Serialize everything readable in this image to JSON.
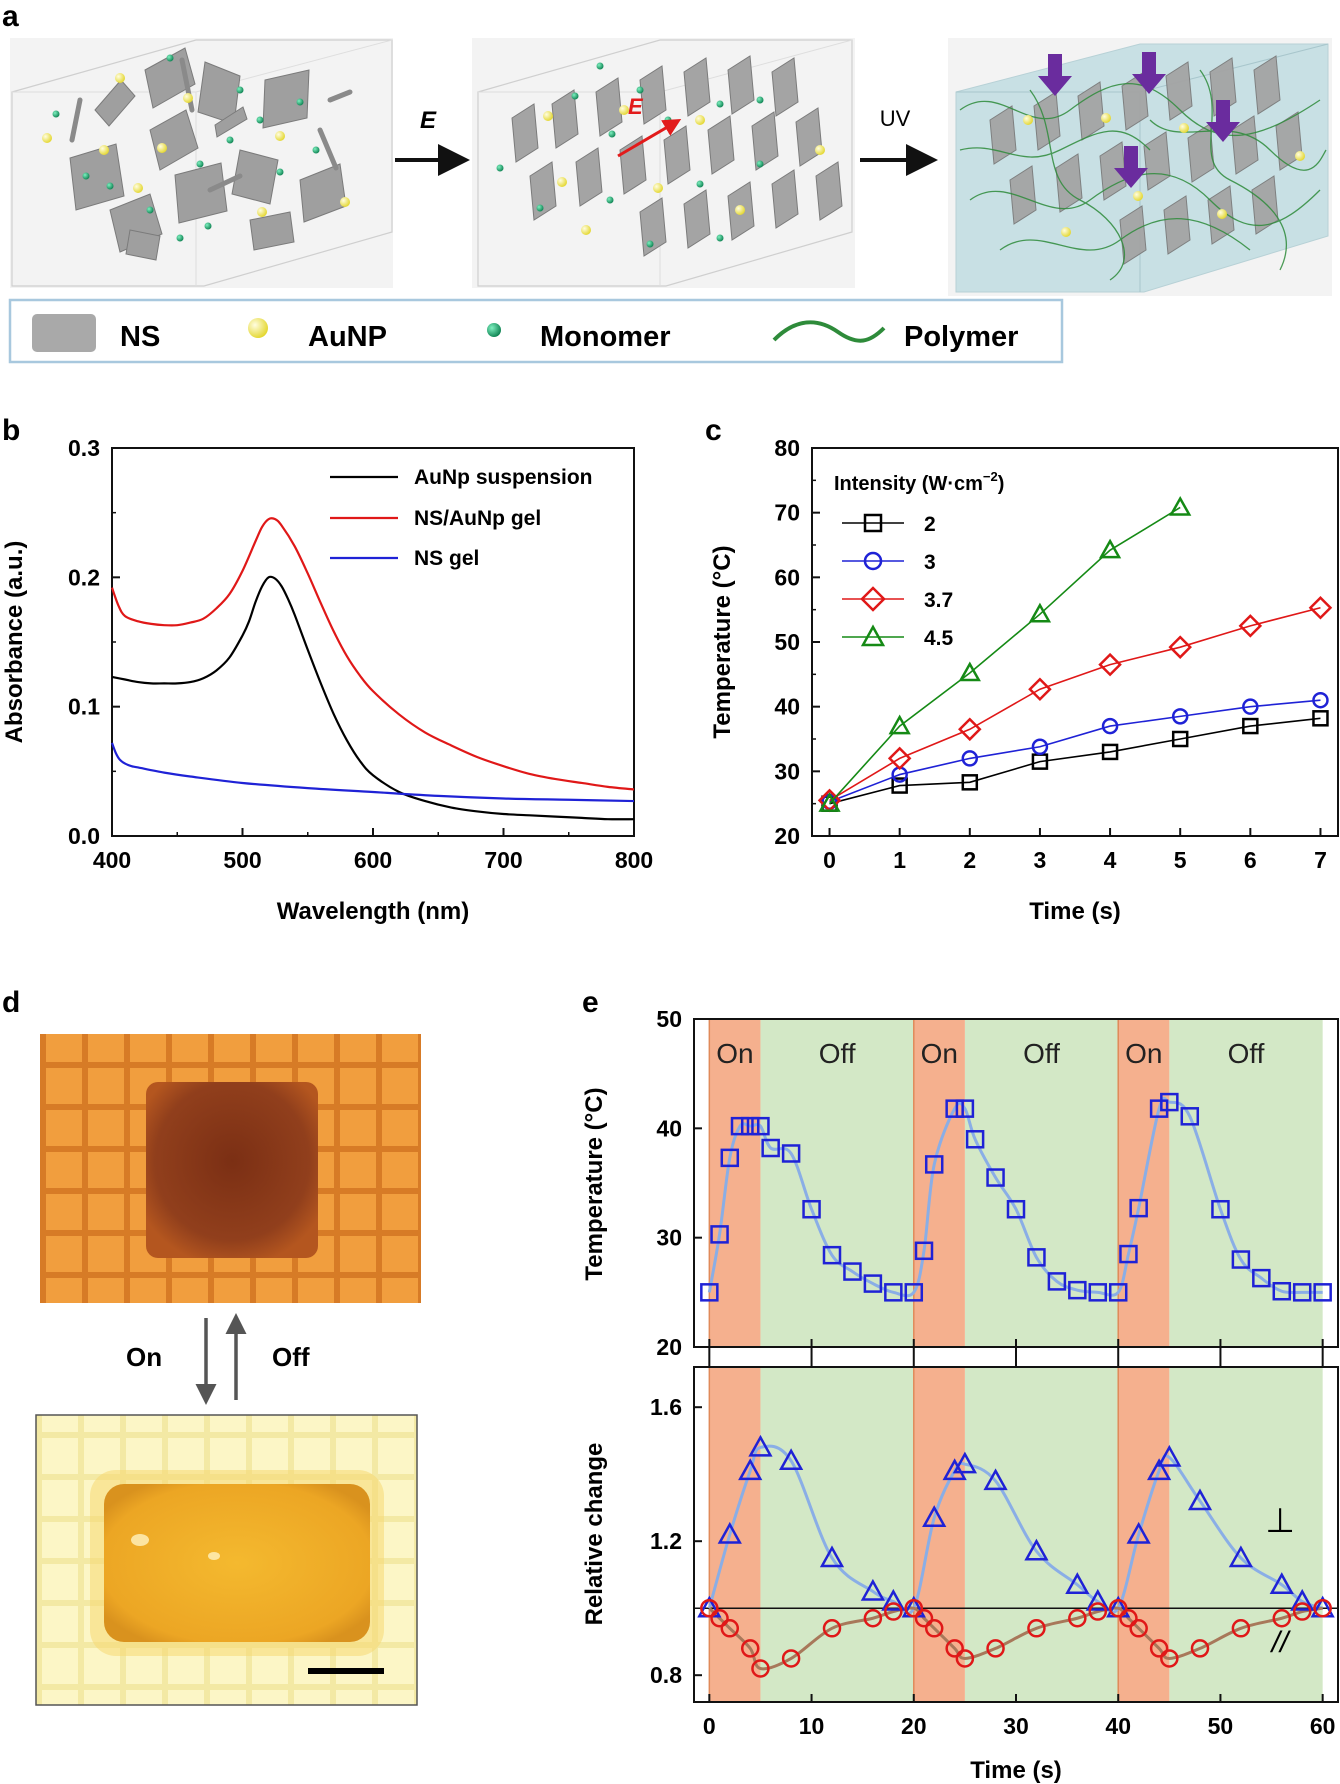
{
  "figure": {
    "panel_labels": {
      "a": "a",
      "b": "b",
      "c": "c",
      "d": "d",
      "e": "e"
    }
  },
  "panel_a": {
    "arrow1_label": "E",
    "inner_field_label": "E",
    "arrow2_label": "UV",
    "legend": {
      "ns": "NS",
      "aunp": "AuNP",
      "monomer": "Monomer",
      "polymer": "Polymer"
    },
    "colors": {
      "sheet": "#a9a9a9",
      "aunp": "#f6f07a",
      "monomer": "#1aa36a",
      "polymer": "#2e8b3a",
      "gel": "#c5dfe3",
      "pressure_arrow": "#6a2c9e",
      "field_arrow": "#e21b1b"
    }
  },
  "panel_d": {
    "on_label": "On",
    "off_label": "Off",
    "colors": {
      "top_bg": "#ec9c3c",
      "top_gel": "#7c3216",
      "bottom_bg": "#fbf2b6",
      "bottom_gel": "#efae28"
    }
  },
  "chart_data": [
    {
      "id": "b",
      "type": "line",
      "xlabel": "Wavelength (nm)",
      "ylabel": "Absorbance (a.u.)",
      "xlim": [
        400,
        800
      ],
      "ylim": [
        0,
        0.3
      ],
      "xticks": [
        "400",
        "500",
        "600",
        "700",
        "800"
      ],
      "yticks": [
        "0.0",
        "0.1",
        "0.2",
        "0.3"
      ],
      "legend_position": "top-right",
      "series": [
        {
          "name": "AuNp suspension",
          "color": "#000000",
          "x": [
            400,
            410,
            420,
            430,
            440,
            450,
            460,
            470,
            480,
            490,
            500,
            505,
            510,
            515,
            520,
            525,
            530,
            535,
            540,
            550,
            560,
            570,
            580,
            590,
            600,
            620,
            640,
            660,
            680,
            700,
            720,
            740,
            760,
            780,
            800
          ],
          "y": [
            0.123,
            0.121,
            0.119,
            0.118,
            0.118,
            0.118,
            0.119,
            0.122,
            0.128,
            0.138,
            0.155,
            0.166,
            0.181,
            0.193,
            0.2,
            0.199,
            0.193,
            0.183,
            0.171,
            0.144,
            0.118,
            0.094,
            0.074,
            0.058,
            0.047,
            0.034,
            0.027,
            0.022,
            0.019,
            0.017,
            0.016,
            0.015,
            0.014,
            0.013,
            0.013
          ]
        },
        {
          "name": "NS/AuNp gel",
          "color": "#e01818",
          "x": [
            400,
            405,
            410,
            420,
            430,
            440,
            450,
            460,
            470,
            480,
            490,
            500,
            510,
            515,
            520,
            525,
            530,
            540,
            550,
            560,
            570,
            580,
            590,
            600,
            620,
            640,
            660,
            680,
            700,
            720,
            740,
            760,
            780,
            800
          ],
          "y": [
            0.192,
            0.178,
            0.17,
            0.166,
            0.164,
            0.163,
            0.163,
            0.165,
            0.168,
            0.176,
            0.187,
            0.205,
            0.228,
            0.239,
            0.245,
            0.245,
            0.24,
            0.224,
            0.203,
            0.18,
            0.158,
            0.139,
            0.124,
            0.112,
            0.094,
            0.08,
            0.07,
            0.061,
            0.054,
            0.048,
            0.044,
            0.041,
            0.038,
            0.036
          ]
        },
        {
          "name": "NS gel",
          "color": "#1f22d6",
          "x": [
            400,
            403,
            406,
            410,
            415,
            420,
            440,
            460,
            500,
            550,
            600,
            650,
            700,
            750,
            800
          ],
          "y": [
            0.072,
            0.064,
            0.059,
            0.056,
            0.054,
            0.053,
            0.049,
            0.046,
            0.041,
            0.037,
            0.034,
            0.031,
            0.029,
            0.028,
            0.027
          ]
        }
      ]
    },
    {
      "id": "c",
      "type": "line",
      "xlabel": "Time (s)",
      "ylabel": "Temperature (°C)",
      "xlim": [
        -0.25,
        7.25
      ],
      "ylim": [
        20,
        80
      ],
      "xticks": [
        "0",
        "1",
        "2",
        "3",
        "4",
        "5",
        "6",
        "7"
      ],
      "yticks": [
        "20",
        "30",
        "40",
        "50",
        "60",
        "70",
        "80"
      ],
      "legend_title": "Intensity (W·cm",
      "legend_title_sup": "−2",
      "legend_title_end": ")",
      "legend_position": "top-left",
      "series": [
        {
          "name": "2",
          "color": "#000000",
          "marker": "square",
          "x": [
            0,
            1,
            2,
            3,
            4,
            5,
            6,
            7
          ],
          "y": [
            25,
            27.8,
            28.3,
            31.5,
            33,
            35,
            37,
            38.2
          ]
        },
        {
          "name": "3",
          "color": "#1f22d6",
          "marker": "circle",
          "x": [
            0,
            1,
            2,
            3,
            4,
            5,
            6,
            7
          ],
          "y": [
            25.3,
            29.5,
            32,
            33.8,
            37,
            38.5,
            40,
            41
          ]
        },
        {
          "name": "3.7",
          "color": "#e01818",
          "marker": "diamond",
          "x": [
            0,
            1,
            2,
            3,
            4,
            5,
            6,
            7
          ],
          "y": [
            25.5,
            32,
            36.5,
            42.7,
            46.5,
            49.2,
            52.5,
            55.3
          ]
        },
        {
          "name": "4.5",
          "color": "#158a15",
          "marker": "triangle",
          "x": [
            0,
            1,
            2,
            3,
            4,
            5
          ],
          "y": [
            25,
            37,
            45.2,
            54.3,
            64.2,
            70.8
          ]
        }
      ]
    },
    {
      "id": "e-top",
      "type": "scatter",
      "xlabel": "",
      "ylabel": "Temperature (°C)",
      "xlim": [
        -1.5,
        61.5
      ],
      "ylim": [
        20,
        50
      ],
      "yticks": [
        "20",
        "30",
        "40",
        "50"
      ],
      "phase_labels": [
        "On",
        "Off",
        "On",
        "Off",
        "On",
        "Off"
      ],
      "on_intervals": [
        [
          0,
          5
        ],
        [
          20,
          25
        ],
        [
          40,
          45
        ]
      ],
      "off_intervals": [
        [
          5,
          20
        ],
        [
          25,
          40
        ],
        [
          45,
          60
        ]
      ],
      "colors": {
        "on": "#f5b08e",
        "off": "#d3e8c6",
        "marker": "#1f22d6",
        "fit": "#8aaee6"
      },
      "series": [
        {
          "name": "Temperature",
          "marker": "square",
          "x": [
            0,
            1,
            2,
            3,
            4,
            5,
            6,
            8,
            10,
            12,
            14,
            16,
            18,
            20,
            21,
            22,
            24,
            25,
            26,
            28,
            30,
            32,
            34,
            36,
            38,
            40,
            41,
            42,
            44,
            45,
            47,
            50,
            52,
            54,
            56,
            58,
            60
          ],
          "y": [
            25,
            30.3,
            37.3,
            40.2,
            40.2,
            40.2,
            38.2,
            37.7,
            32.6,
            28.4,
            26.9,
            25.8,
            25,
            25,
            28.8,
            36.7,
            41.8,
            41.8,
            39,
            35.5,
            32.6,
            28.2,
            26,
            25.2,
            25,
            25,
            28.5,
            32.7,
            41.8,
            42.4,
            41.1,
            32.6,
            28,
            26.3,
            25.1,
            25,
            25
          ]
        }
      ]
    },
    {
      "id": "e-bottom",
      "type": "scatter",
      "xlabel": "Time (s)",
      "ylabel": "Relative change",
      "xlim": [
        -1.5,
        61.5
      ],
      "ylim": [
        0.72,
        1.72
      ],
      "xticks": [
        "0",
        "10",
        "20",
        "30",
        "40",
        "50",
        "60"
      ],
      "yticks": [
        "0.8",
        "1.2",
        "1.6"
      ],
      "reference_line": 1.0,
      "series": [
        {
          "name": "⊥",
          "color": "#1f22d6",
          "marker": "triangle",
          "x": [
            0,
            2,
            4,
            5,
            8,
            12,
            16,
            18,
            20,
            22,
            24,
            25,
            28,
            32,
            36,
            38,
            40,
            42,
            44,
            45,
            48,
            52,
            56,
            58,
            60
          ],
          "y": [
            1.0,
            1.22,
            1.41,
            1.48,
            1.44,
            1.15,
            1.05,
            1.02,
            1.0,
            1.27,
            1.41,
            1.43,
            1.38,
            1.17,
            1.07,
            1.02,
            1.0,
            1.22,
            1.41,
            1.45,
            1.32,
            1.15,
            1.07,
            1.02,
            1.0
          ]
        },
        {
          "name": "//",
          "color": "#e01818",
          "marker": "circle",
          "x": [
            0,
            1,
            2,
            4,
            5,
            8,
            12,
            16,
            18,
            20,
            21,
            22,
            24,
            25,
            28,
            32,
            36,
            38,
            40,
            41,
            42,
            44,
            45,
            48,
            52,
            56,
            58,
            60
          ],
          "y": [
            1.0,
            0.97,
            0.94,
            0.88,
            0.82,
            0.85,
            0.94,
            0.97,
            0.99,
            1.0,
            0.97,
            0.94,
            0.88,
            0.85,
            0.88,
            0.94,
            0.97,
            0.99,
            1.0,
            0.97,
            0.94,
            0.88,
            0.85,
            0.88,
            0.94,
            0.97,
            0.99,
            1.0
          ]
        }
      ]
    }
  ]
}
